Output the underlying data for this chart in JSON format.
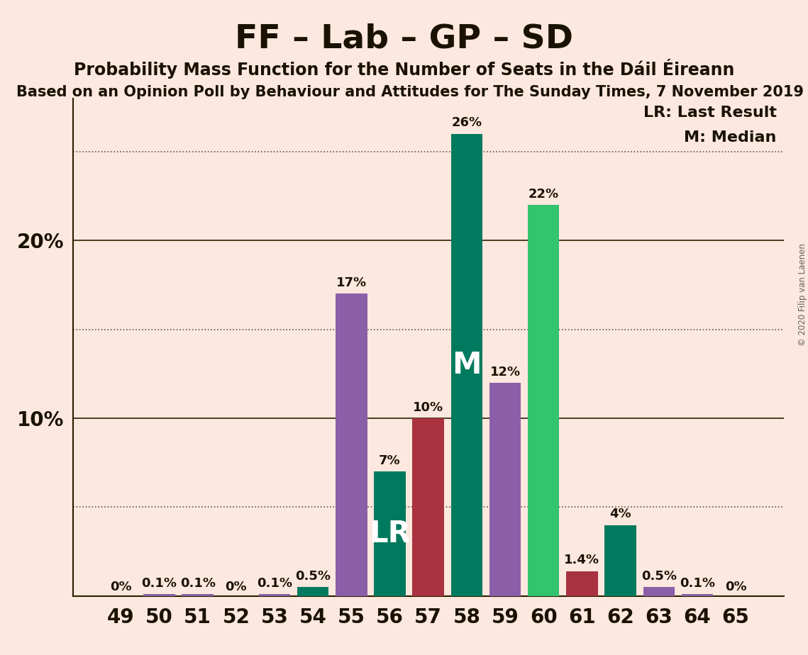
{
  "title": "FF – Lab – GP – SD",
  "subtitle": "Probability Mass Function for the Number of Seats in the Dáil Éireann",
  "subtitle2": "Based on an Opinion Poll by Behaviour and Attitudes for The Sunday Times, 7 November 2019",
  "copyright": "© 2020 Filip van Laenen",
  "categories": [
    49,
    50,
    51,
    52,
    53,
    54,
    55,
    56,
    57,
    58,
    59,
    60,
    61,
    62,
    63,
    64,
    65
  ],
  "values": [
    0.0,
    0.1,
    0.1,
    0.0,
    0.1,
    0.5,
    17.0,
    7.0,
    10.0,
    26.0,
    12.0,
    22.0,
    1.4,
    4.0,
    0.5,
    0.1,
    0.0
  ],
  "labels": [
    "0%",
    "0.1%",
    "0.1%",
    "0%",
    "0.1%",
    "0.5%",
    "17%",
    "7%",
    "10%",
    "26%",
    "12%",
    "22%",
    "1.4%",
    "4%",
    "0.5%",
    "0.1%",
    "0%"
  ],
  "bar_colors": [
    "#8b5fa8",
    "#8b5fa8",
    "#8b5fa8",
    "#8b5fa8",
    "#8b5fa8",
    "#007a5e",
    "#8b5fa8",
    "#007a5e",
    "#a83240",
    "#007a5e",
    "#8b5fa8",
    "#33c46e",
    "#a83240",
    "#007a5e",
    "#8b5fa8",
    "#8b5fa8",
    "#8b5fa8"
  ],
  "background_color": "#fce8de",
  "lr_bar": 56,
  "median_bar": 58,
  "lr_label": "LR: Last Result",
  "median_label": "M: Median",
  "ytick_solid": [
    10,
    20
  ],
  "ytick_dotted": [
    5,
    15,
    25
  ],
  "ylim": [
    0,
    28
  ],
  "title_fontsize": 34,
  "subtitle_fontsize": 17,
  "subtitle2_fontsize": 15,
  "bar_label_fontsize": 13,
  "axis_fontsize": 20,
  "annotation_fontsize": 30,
  "legend_fontsize": 16
}
